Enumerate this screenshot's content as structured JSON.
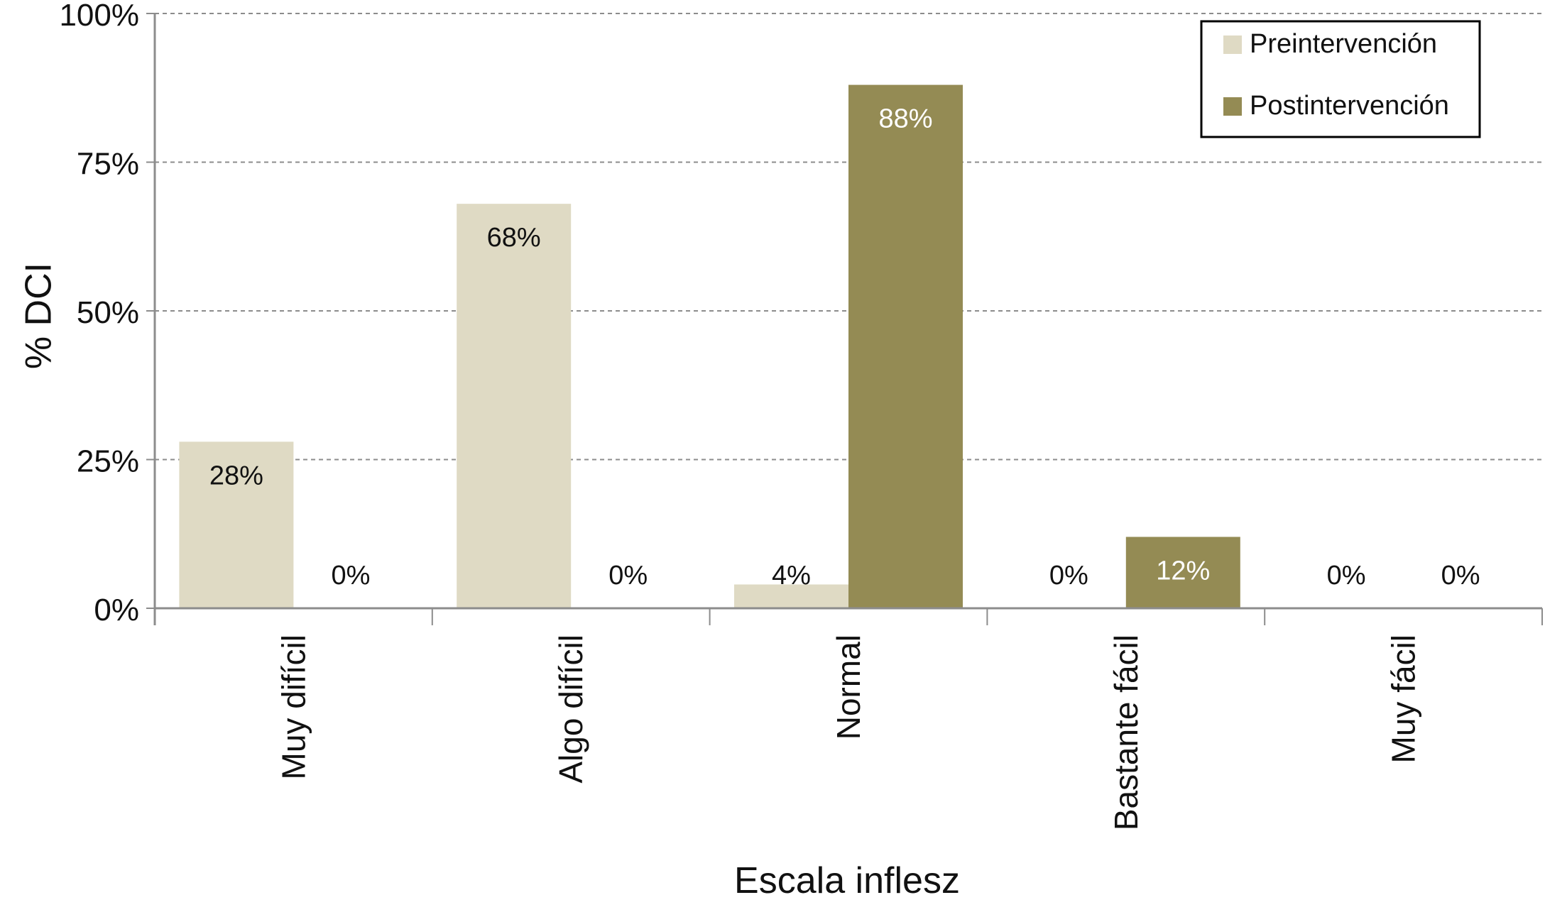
{
  "chart_data": {
    "type": "bar",
    "title": "",
    "xlabel": "Escala inflesz",
    "ylabel": "% DCI",
    "ylim": [
      0,
      100
    ],
    "yticks": [
      0,
      25,
      50,
      75,
      100
    ],
    "ytick_labels": [
      "0%",
      "25%",
      "50%",
      "75%",
      "100%"
    ],
    "grid": "horizontal dashed",
    "legend_position": "top-right",
    "categories": [
      "Muy difícil",
      "Algo difícil",
      "Normal",
      "Bastante fácil",
      "Muy fácil"
    ],
    "series": [
      {
        "name": "Preintervención",
        "color": "#dfdac4",
        "values": [
          28,
          68,
          4,
          0,
          0
        ],
        "labels": [
          "28%",
          "68%",
          "4%",
          "0%",
          "0%"
        ],
        "label_color": "#111111"
      },
      {
        "name": "Postintervención",
        "color": "#948b54",
        "values": [
          0,
          0,
          88,
          12,
          0
        ],
        "labels": [
          "0%",
          "0%",
          "88%",
          "12%",
          "0%"
        ],
        "label_color": "#ffffff"
      }
    ]
  }
}
